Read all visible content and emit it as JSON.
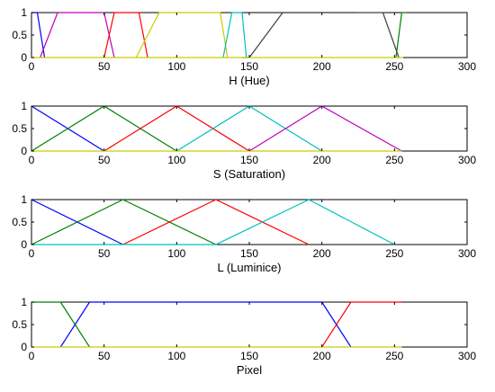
{
  "chart_data": [
    {
      "type": "line",
      "title": "",
      "xlabel": "H (Hue)",
      "ylabel": "",
      "xlim": [
        0,
        300
      ],
      "ylim": [
        0,
        1
      ],
      "xticks": [
        0,
        50,
        100,
        150,
        200,
        250,
        300
      ],
      "yticks": [
        0,
        0.5,
        1
      ],
      "grid": false,
      "legend": "none",
      "series": [
        {
          "color": "#0000ff",
          "x": [
            0,
            4,
            9
          ],
          "y": [
            1,
            1,
            0
          ]
        },
        {
          "color": "#bf00bf",
          "x": [
            6,
            18,
            42
          ],
          "y": [
            0,
            1,
            1
          ]
        },
        {
          "color": "#bf00bf",
          "x": [
            42,
            50,
            57
          ],
          "y": [
            1,
            1,
            0
          ]
        },
        {
          "color": "#ff0000",
          "x": [
            50,
            57,
            70
          ],
          "y": [
            0,
            1,
            1
          ]
        },
        {
          "color": "#ff0000",
          "x": [
            70,
            74,
            80
          ],
          "y": [
            1,
            1,
            0
          ]
        },
        {
          "color": "#cccc00",
          "x": [
            72,
            88,
            120
          ],
          "y": [
            0,
            1,
            1
          ]
        },
        {
          "color": "#cccc00",
          "x": [
            120,
            130,
            135
          ],
          "y": [
            1,
            1,
            0
          ]
        },
        {
          "color": "#00bfbf",
          "x": [
            132,
            138,
            145
          ],
          "y": [
            0,
            1,
            1
          ]
        },
        {
          "color": "#00bfbf",
          "x": [
            145,
            148
          ],
          "y": [
            1,
            0
          ]
        },
        {
          "color": "#404040",
          "x": [
            145,
            150,
            173
          ],
          "y": [
            0,
            0,
            1
          ]
        },
        {
          "color": "#404040",
          "x": [
            225,
            242,
            253
          ],
          "y": [
            1,
            1,
            0
          ]
        },
        {
          "color": "#008000",
          "x": [
            251,
            255,
            258
          ],
          "y": [
            0,
            1,
            1
          ]
        },
        {
          "color": "#cccc00",
          "x": [
            0,
            256
          ],
          "y": [
            0,
            0
          ]
        }
      ]
    },
    {
      "type": "line",
      "title": "",
      "xlabel": "S (Saturation)",
      "ylabel": "",
      "xlim": [
        0,
        300
      ],
      "ylim": [
        0,
        1
      ],
      "xticks": [
        0,
        50,
        100,
        150,
        200,
        250,
        300
      ],
      "yticks": [
        0,
        0.5,
        1
      ],
      "grid": false,
      "legend": "none",
      "series": [
        {
          "color": "#0000ff",
          "x": [
            0,
            50
          ],
          "y": [
            1,
            0
          ]
        },
        {
          "color": "#008000",
          "x": [
            0,
            50,
            100
          ],
          "y": [
            0,
            1,
            0
          ]
        },
        {
          "color": "#ff0000",
          "x": [
            50,
            100,
            150
          ],
          "y": [
            0,
            1,
            0
          ]
        },
        {
          "color": "#00bfbf",
          "x": [
            100,
            150,
            200
          ],
          "y": [
            0,
            1,
            0
          ]
        },
        {
          "color": "#bf00bf",
          "x": [
            150,
            200,
            255
          ],
          "y": [
            0,
            1,
            0
          ]
        },
        {
          "color": "#cccc00",
          "x": [
            0,
            255
          ],
          "y": [
            0,
            0
          ]
        }
      ]
    },
    {
      "type": "line",
      "title": "",
      "xlabel": "L (Luminice)",
      "ylabel": "",
      "xlim": [
        0,
        300
      ],
      "ylim": [
        0,
        1
      ],
      "xticks": [
        0,
        50,
        100,
        150,
        200,
        250,
        300
      ],
      "yticks": [
        0,
        0.5,
        1
      ],
      "grid": false,
      "legend": "none",
      "series": [
        {
          "color": "#0000ff",
          "x": [
            0,
            63
          ],
          "y": [
            1,
            0
          ]
        },
        {
          "color": "#008000",
          "x": [
            0,
            63,
            127
          ],
          "y": [
            0,
            1,
            0
          ]
        },
        {
          "color": "#ff0000",
          "x": [
            63,
            127,
            191
          ],
          "y": [
            0,
            1,
            0
          ]
        },
        {
          "color": "#00bfbf",
          "x": [
            127,
            191,
            250
          ],
          "y": [
            0,
            1,
            0
          ]
        },
        {
          "color": "#00bfbf",
          "x": [
            0,
            127
          ],
          "y": [
            0,
            0
          ]
        }
      ]
    },
    {
      "type": "line",
      "title": "",
      "xlabel": "Pixel",
      "ylabel": "",
      "xlim": [
        0,
        300
      ],
      "ylim": [
        0,
        1
      ],
      "xticks": [
        0,
        50,
        100,
        150,
        200,
        250,
        300
      ],
      "yticks": [
        0,
        0.5,
        1
      ],
      "grid": false,
      "legend": "none",
      "series": [
        {
          "color": "#008000",
          "x": [
            0,
            20,
            40
          ],
          "y": [
            1,
            1,
            0
          ]
        },
        {
          "color": "#0000ff",
          "x": [
            20,
            40,
            200,
            220
          ],
          "y": [
            0,
            1,
            1,
            0
          ]
        },
        {
          "color": "#ff0000",
          "x": [
            200,
            220,
            255
          ],
          "y": [
            0,
            1,
            1
          ]
        },
        {
          "color": "#cccc00",
          "x": [
            0,
            255
          ],
          "y": [
            0,
            0
          ]
        }
      ]
    }
  ]
}
